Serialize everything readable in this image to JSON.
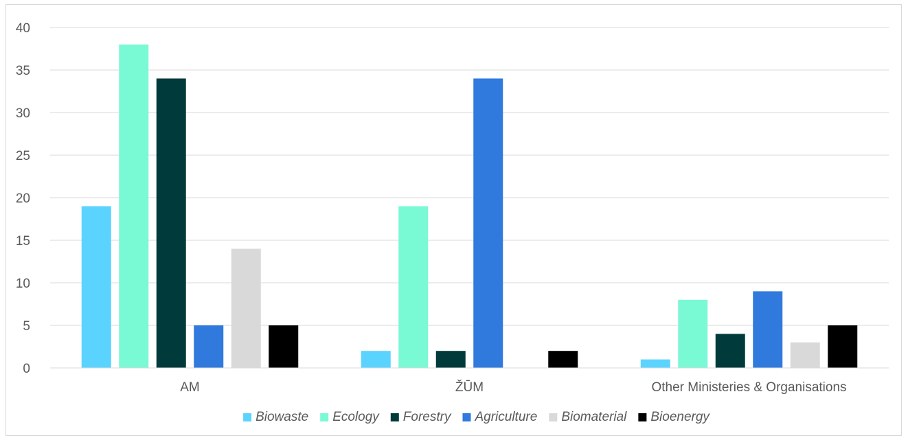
{
  "chart_data": {
    "type": "bar",
    "categories": [
      "AM",
      "ŽŪM",
      "Other Ministeries & Organisations"
    ],
    "series": [
      {
        "name": "Biowaste",
        "color": "#5BD3FF",
        "values": [
          19,
          2,
          1
        ]
      },
      {
        "name": "Ecology",
        "color": "#7AF9D5",
        "values": [
          38,
          19,
          8
        ]
      },
      {
        "name": "Forestry",
        "color": "#003A3A",
        "values": [
          34,
          2,
          4
        ]
      },
      {
        "name": "Agriculture",
        "color": "#3079DD",
        "values": [
          5,
          34,
          9
        ]
      },
      {
        "name": "Biomaterial",
        "color": "#D9D9D9",
        "values": [
          14,
          0,
          3
        ]
      },
      {
        "name": "Bioenergy",
        "color": "#000000",
        "values": [
          5,
          2,
          5
        ]
      }
    ],
    "yticks": [
      "0",
      "5",
      "10",
      "15",
      "20",
      "25",
      "30",
      "35",
      "40"
    ],
    "ylim": [
      0,
      40
    ],
    "grid": true,
    "legend_position": "bottom",
    "title": "",
    "xlabel": "",
    "ylabel": ""
  }
}
